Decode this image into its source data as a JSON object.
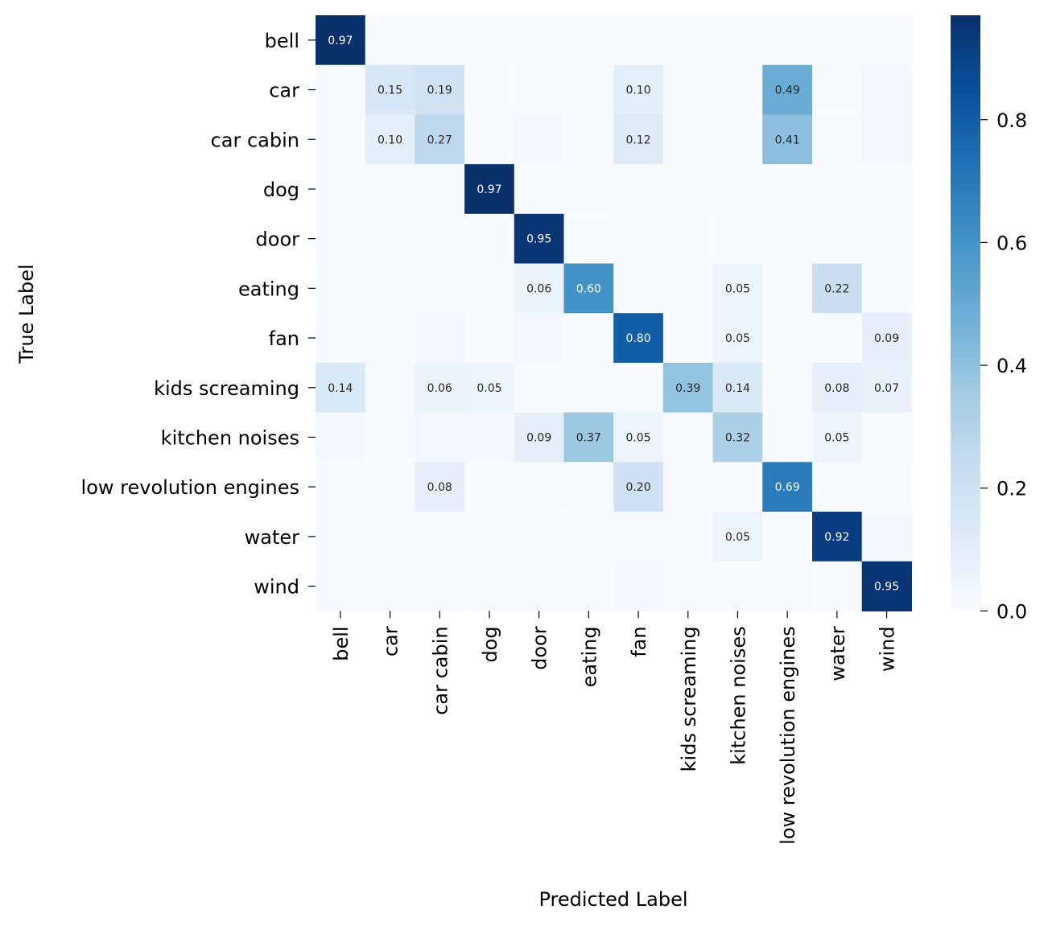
{
  "chart_data": {
    "type": "heatmap",
    "title": "",
    "xlabel": "Predicted Label",
    "ylabel": "True Label",
    "x_categories": [
      "bell",
      "car",
      "car cabin",
      "dog",
      "door",
      "eating",
      "fan",
      "kids screaming",
      "kitchen noises",
      "low revolution engines",
      "water",
      "wind"
    ],
    "y_categories": [
      "bell",
      "car",
      "car cabin",
      "dog",
      "door",
      "eating",
      "fan",
      "kids screaming",
      "kitchen noises",
      "low revolution engines",
      "water",
      "wind"
    ],
    "values": [
      [
        0.97,
        0.0,
        0.0,
        0.0,
        0.0,
        0.0,
        0.0,
        0.0,
        0.0,
        0.0,
        0.01,
        0.0
      ],
      [
        0.0,
        0.15,
        0.19,
        0.0,
        0.01,
        0.0,
        0.1,
        0.0,
        0.0,
        0.49,
        0.0,
        0.02
      ],
      [
        0.0,
        0.1,
        0.27,
        0.0,
        0.02,
        0.0,
        0.12,
        0.0,
        0.0,
        0.41,
        0.01,
        0.03
      ],
      [
        0.0,
        0.0,
        0.0,
        0.97,
        0.0,
        0.01,
        0.0,
        0.0,
        0.0,
        0.0,
        0.0,
        0.0
      ],
      [
        0.0,
        0.0,
        0.01,
        0.0,
        0.95,
        0.0,
        0.0,
        0.0,
        0.01,
        0.0,
        0.0,
        0.0
      ],
      [
        0.01,
        0.0,
        0.0,
        0.0,
        0.06,
        0.6,
        0.01,
        0.0,
        0.05,
        0.0,
        0.22,
        0.0
      ],
      [
        0.0,
        0.0,
        0.02,
        0.0,
        0.02,
        0.0,
        0.8,
        0.0,
        0.05,
        0.0,
        0.0,
        0.09
      ],
      [
        0.14,
        0.01,
        0.06,
        0.05,
        0.0,
        0.01,
        0.0,
        0.39,
        0.14,
        0.0,
        0.08,
        0.07
      ],
      [
        0.02,
        0.0,
        0.03,
        0.02,
        0.09,
        0.37,
        0.05,
        0.0,
        0.32,
        0.0,
        0.05,
        0.0
      ],
      [
        0.0,
        0.01,
        0.08,
        0.0,
        0.0,
        0.0,
        0.2,
        0.0,
        0.0,
        0.69,
        0.0,
        0.01
      ],
      [
        0.0,
        0.0,
        0.0,
        0.0,
        0.0,
        0.01,
        0.01,
        0.0,
        0.05,
        0.0,
        0.92,
        0.02
      ],
      [
        0.0,
        0.0,
        0.01,
        0.0,
        0.0,
        0.0,
        0.02,
        0.0,
        0.0,
        0.01,
        0.0,
        0.95
      ]
    ],
    "annotation_threshold": 0.05,
    "colorbar": {
      "colormap": "Blues",
      "vmin": 0.0,
      "vmax": 0.97,
      "ticks": [
        0.0,
        0.2,
        0.4,
        0.6,
        0.8
      ],
      "tick_labels": [
        "0.0",
        "0.2",
        "0.4",
        "0.6",
        "0.8"
      ]
    }
  }
}
